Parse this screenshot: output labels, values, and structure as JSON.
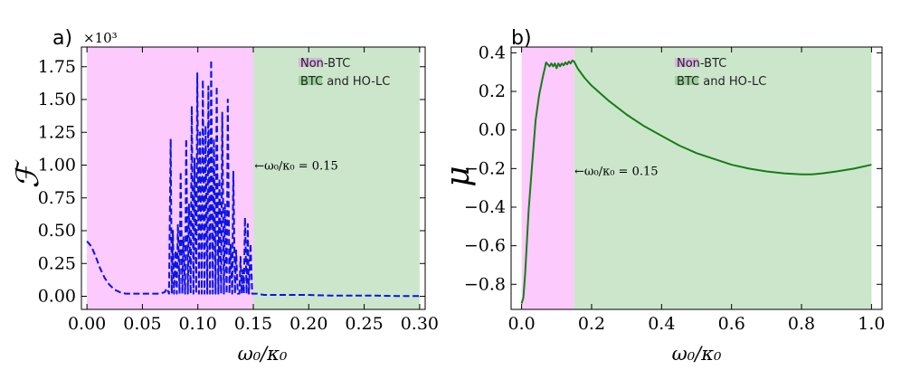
{
  "chart_data": [
    {
      "type": "line",
      "panel_label": "a)",
      "ylabel": "ℱ",
      "xlabel": "ω₀/κ₀",
      "multiplier": "×10³",
      "xlim": [
        -0.005,
        0.305
      ],
      "ylim": [
        -0.1,
        1.9
      ],
      "xticks": [
        0.0,
        0.05,
        0.1,
        0.15,
        0.2,
        0.25,
        0.3
      ],
      "xtick_labels": [
        "0.00",
        "0.05",
        "0.10",
        "0.15",
        "0.20",
        "0.25",
        "0.30"
      ],
      "yticks": [
        0.0,
        0.25,
        0.5,
        0.75,
        1.0,
        1.25,
        1.5,
        1.75
      ],
      "ytick_labels": [
        "0.00",
        "0.25",
        "0.50",
        "0.75",
        "1.00",
        "1.25",
        "1.50",
        "1.75"
      ],
      "regions": [
        {
          "name": "Non-BTC",
          "from": 0.0,
          "to": 0.15,
          "color": "#fccafc"
        },
        {
          "name": "BTC and HO-LC",
          "from": 0.15,
          "to": 0.3,
          "color": "#cce6cc"
        }
      ],
      "legend_position": "top-right",
      "annotation": {
        "text": "←ω₀/κ₀ = 0.15",
        "x": 0.151,
        "y": 1.0
      },
      "series": [
        {
          "color": "#0a14e6",
          "style": "dashed",
          "x": [
            0.0,
            0.004,
            0.008,
            0.012,
            0.016,
            0.02,
            0.025,
            0.03,
            0.035,
            0.04,
            0.045,
            0.05,
            0.055,
            0.06,
            0.065,
            0.07,
            0.072,
            0.074,
            0.0755,
            0.0765,
            0.0775,
            0.0785,
            0.08,
            0.081,
            0.082,
            0.0835,
            0.0845,
            0.086,
            0.087,
            0.0885,
            0.0895,
            0.091,
            0.092,
            0.0935,
            0.0945,
            0.096,
            0.097,
            0.0985,
            0.0995,
            0.101,
            0.102,
            0.1035,
            0.1045,
            0.106,
            0.107,
            0.1085,
            0.1095,
            0.111,
            0.112,
            0.1135,
            0.1145,
            0.116,
            0.117,
            0.1185,
            0.1195,
            0.121,
            0.122,
            0.1235,
            0.1245,
            0.126,
            0.127,
            0.1285,
            0.1295,
            0.131,
            0.132,
            0.1335,
            0.1345,
            0.136,
            0.1375,
            0.1385,
            0.1395,
            0.1405,
            0.1415,
            0.1425,
            0.144,
            0.145,
            0.146,
            0.1475,
            0.149,
            0.15,
            0.153,
            0.16,
            0.18,
            0.2,
            0.22,
            0.24,
            0.26,
            0.28,
            0.3
          ],
          "y": [
            0.42,
            0.38,
            0.3,
            0.21,
            0.14,
            0.09,
            0.05,
            0.03,
            0.02,
            0.02,
            0.02,
            0.02,
            0.02,
            0.02,
            0.02,
            0.03,
            0.06,
            0.02,
            1.2,
            0.02,
            0.5,
            0.02,
            0.35,
            0.02,
            0.55,
            0.02,
            0.95,
            0.02,
            0.45,
            0.02,
            1.2,
            0.02,
            0.7,
            0.02,
            1.45,
            0.02,
            1.05,
            0.02,
            1.7,
            0.02,
            1.25,
            0.02,
            1.65,
            0.02,
            1.3,
            0.02,
            1.6,
            0.02,
            1.8,
            0.02,
            1.2,
            0.02,
            1.6,
            0.02,
            0.9,
            0.02,
            1.4,
            0.02,
            0.7,
            0.02,
            1.5,
            0.02,
            0.4,
            0.02,
            0.95,
            0.02,
            0.35,
            0.02,
            0.02,
            0.3,
            0.02,
            0.2,
            0.02,
            0.6,
            0.02,
            0.55,
            0.02,
            0.4,
            0.02,
            0.02,
            0.02,
            0.01,
            0.01,
            0.01,
            0.005,
            0.005,
            0.005,
            0.002,
            0.002
          ]
        }
      ]
    },
    {
      "type": "line",
      "panel_label": "b)",
      "ylabel": "μ",
      "xlabel": "ω₀/κ₀",
      "xlim": [
        -0.03,
        1.03
      ],
      "ylim": [
        -0.93,
        0.43
      ],
      "xticks": [
        0.0,
        0.2,
        0.4,
        0.6,
        0.8,
        1.0
      ],
      "xtick_labels": [
        "0.0",
        "0.2",
        "0.4",
        "0.6",
        "0.8",
        "1.0"
      ],
      "yticks": [
        -0.8,
        -0.6,
        -0.4,
        -0.2,
        0.0,
        0.2,
        0.4
      ],
      "ytick_labels": [
        "−0.8",
        "−0.6",
        "−0.4",
        "−0.2",
        "0.0",
        "0.2",
        "0.4"
      ],
      "regions": [
        {
          "name": "Non-BTC",
          "from": 0.0,
          "to": 0.15,
          "color": "#fccafc"
        },
        {
          "name": "BTC and HO-LC",
          "from": 0.15,
          "to": 1.0,
          "color": "#cce6cc"
        }
      ],
      "legend_position": "top-right",
      "annotation": {
        "text": "←ω₀/κ₀ = 0.15",
        "x": 0.151,
        "y": -0.21
      },
      "series": [
        {
          "color": "#167d16",
          "style": "solid",
          "x": [
            0.0,
            0.005,
            0.01,
            0.02,
            0.03,
            0.04,
            0.05,
            0.06,
            0.07,
            0.075,
            0.08,
            0.085,
            0.09,
            0.095,
            0.1,
            0.105,
            0.11,
            0.115,
            0.12,
            0.125,
            0.13,
            0.135,
            0.14,
            0.145,
            0.15,
            0.16,
            0.18,
            0.2,
            0.25,
            0.3,
            0.35,
            0.4,
            0.45,
            0.5,
            0.55,
            0.6,
            0.65,
            0.7,
            0.75,
            0.8,
            0.83,
            0.86,
            0.9,
            0.95,
            1.0
          ],
          "y": [
            -0.9,
            -0.87,
            -0.75,
            -0.42,
            -0.18,
            0.05,
            0.18,
            0.27,
            0.35,
            0.34,
            0.33,
            0.345,
            0.33,
            0.345,
            0.32,
            0.345,
            0.33,
            0.345,
            0.335,
            0.35,
            0.34,
            0.355,
            0.345,
            0.36,
            0.355,
            0.32,
            0.27,
            0.23,
            0.15,
            0.08,
            0.02,
            -0.03,
            -0.08,
            -0.12,
            -0.15,
            -0.18,
            -0.2,
            -0.215,
            -0.225,
            -0.23,
            -0.23,
            -0.225,
            -0.215,
            -0.2,
            -0.18
          ]
        }
      ]
    }
  ]
}
